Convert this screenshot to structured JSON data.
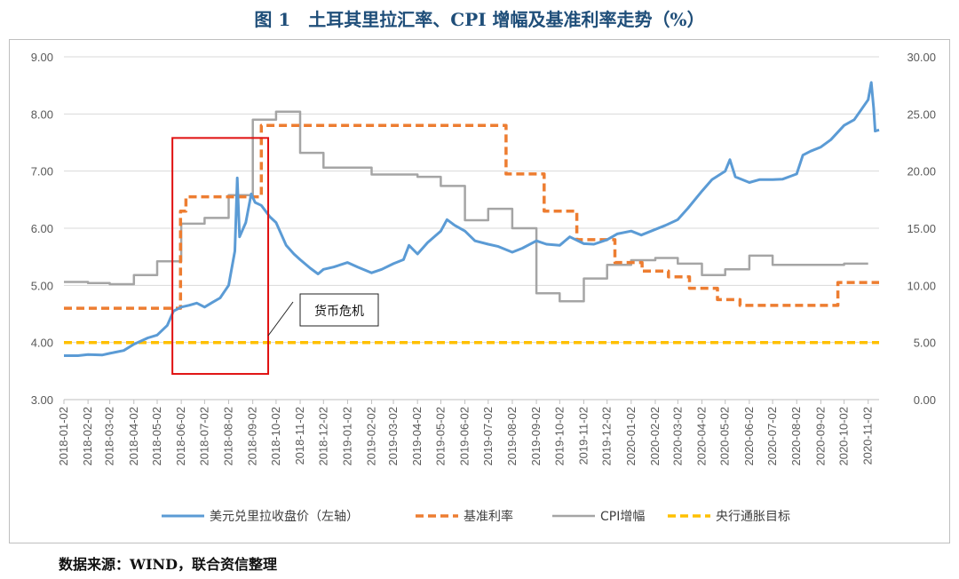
{
  "title": "图 1　土耳其里拉汇率、CPI 增幅及基准利率走势（%）",
  "source": "数据来源：WIND，联合资信整理",
  "annotation": "货币危机",
  "colors": {
    "fx": "#5b9bd5",
    "rate": "#ed7d31",
    "cpi": "#a5a5a5",
    "target": "#ffc000",
    "highlight": "#e01010"
  },
  "chart_data": {
    "type": "line",
    "x_ticks": [
      "2018-01-02",
      "2018-02-02",
      "2018-03-02",
      "2018-04-02",
      "2018-05-02",
      "2018-06-02",
      "2018-07-02",
      "2018-08-02",
      "2018-09-02",
      "2018-10-02",
      "2018-11-02",
      "2018-12-02",
      "2019-01-02",
      "2019-02-02",
      "2019-03-02",
      "2019-04-02",
      "2019-05-02",
      "2019-06-02",
      "2019-07-02",
      "2019-08-02",
      "2019-09-02",
      "2019-10-02",
      "2019-11-02",
      "2019-12-02",
      "2020-01-02",
      "2020-02-02",
      "2020-03-02",
      "2020-04-02",
      "2020-05-02",
      "2020-06-02",
      "2020-07-02",
      "2020-08-02",
      "2020-09-02",
      "2020-10-02",
      "2020-11-02"
    ],
    "y_left": {
      "ticks": [
        "3.00",
        "4.00",
        "5.00",
        "6.00",
        "7.00",
        "8.00",
        "9.00"
      ],
      "range": [
        3,
        9
      ]
    },
    "y_right": {
      "ticks": [
        "0.00",
        "5.00",
        "10.00",
        "15.00",
        "20.00",
        "25.00",
        "30.00"
      ],
      "range": [
        0,
        30
      ]
    },
    "highlight_range": [
      "2018-06-02",
      "2018-09-15"
    ],
    "highlight_ylim": [
      3.45,
      7.58
    ],
    "series": [
      {
        "name": "美元兑里拉收盘价（左轴）",
        "axis": "left",
        "style": "solid",
        "points": [
          [
            "2018-01-02",
            3.77
          ],
          [
            "2018-01-20",
            3.77
          ],
          [
            "2018-02-02",
            3.79
          ],
          [
            "2018-02-20",
            3.78
          ],
          [
            "2018-03-02",
            3.81
          ],
          [
            "2018-03-20",
            3.86
          ],
          [
            "2018-04-02",
            3.97
          ],
          [
            "2018-04-20",
            4.08
          ],
          [
            "2018-05-02",
            4.13
          ],
          [
            "2018-05-15",
            4.3
          ],
          [
            "2018-05-23",
            4.55
          ],
          [
            "2018-06-02",
            4.62
          ],
          [
            "2018-06-12",
            4.65
          ],
          [
            "2018-06-22",
            4.69
          ],
          [
            "2018-07-02",
            4.62
          ],
          [
            "2018-07-12",
            4.7
          ],
          [
            "2018-07-22",
            4.78
          ],
          [
            "2018-08-02",
            5.0
          ],
          [
            "2018-08-10",
            5.6
          ],
          [
            "2018-08-13",
            6.88
          ],
          [
            "2018-08-16",
            5.85
          ],
          [
            "2018-08-24",
            6.1
          ],
          [
            "2018-08-31",
            6.6
          ],
          [
            "2018-09-05",
            6.45
          ],
          [
            "2018-09-13",
            6.4
          ],
          [
            "2018-09-24",
            6.2
          ],
          [
            "2018-10-02",
            6.1
          ],
          [
            "2018-10-15",
            5.7
          ],
          [
            "2018-10-25",
            5.55
          ],
          [
            "2018-11-02",
            5.45
          ],
          [
            "2018-11-15",
            5.3
          ],
          [
            "2018-11-25",
            5.2
          ],
          [
            "2018-12-02",
            5.28
          ],
          [
            "2018-12-15",
            5.32
          ],
          [
            "2019-01-02",
            5.4
          ],
          [
            "2019-01-15",
            5.32
          ],
          [
            "2019-02-02",
            5.22
          ],
          [
            "2019-02-15",
            5.28
          ],
          [
            "2019-03-02",
            5.38
          ],
          [
            "2019-03-15",
            5.45
          ],
          [
            "2019-03-22",
            5.7
          ],
          [
            "2019-04-02",
            5.55
          ],
          [
            "2019-04-15",
            5.75
          ],
          [
            "2019-05-02",
            5.95
          ],
          [
            "2019-05-10",
            6.15
          ],
          [
            "2019-05-20",
            6.05
          ],
          [
            "2019-06-02",
            5.95
          ],
          [
            "2019-06-15",
            5.78
          ],
          [
            "2019-07-02",
            5.72
          ],
          [
            "2019-07-15",
            5.68
          ],
          [
            "2019-08-02",
            5.58
          ],
          [
            "2019-08-15",
            5.65
          ],
          [
            "2019-09-02",
            5.78
          ],
          [
            "2019-09-15",
            5.72
          ],
          [
            "2019-10-02",
            5.7
          ],
          [
            "2019-10-15",
            5.85
          ],
          [
            "2019-11-02",
            5.73
          ],
          [
            "2019-11-15",
            5.72
          ],
          [
            "2019-12-02",
            5.8
          ],
          [
            "2019-12-15",
            5.9
          ],
          [
            "2020-01-02",
            5.95
          ],
          [
            "2020-01-15",
            5.88
          ],
          [
            "2020-02-02",
            5.98
          ],
          [
            "2020-02-15",
            6.05
          ],
          [
            "2020-03-02",
            6.15
          ],
          [
            "2020-03-15",
            6.35
          ],
          [
            "2020-04-02",
            6.65
          ],
          [
            "2020-04-15",
            6.85
          ],
          [
            "2020-05-02",
            7.0
          ],
          [
            "2020-05-08",
            7.2
          ],
          [
            "2020-05-15",
            6.9
          ],
          [
            "2020-06-02",
            6.8
          ],
          [
            "2020-06-15",
            6.85
          ],
          [
            "2020-07-02",
            6.85
          ],
          [
            "2020-07-15",
            6.86
          ],
          [
            "2020-08-02",
            6.95
          ],
          [
            "2020-08-10",
            7.28
          ],
          [
            "2020-08-20",
            7.35
          ],
          [
            "2020-09-02",
            7.42
          ],
          [
            "2020-09-15",
            7.55
          ],
          [
            "2020-10-02",
            7.8
          ],
          [
            "2020-10-15",
            7.9
          ],
          [
            "2020-11-02",
            8.25
          ],
          [
            "2020-11-06",
            8.55
          ],
          [
            "2020-11-09",
            8.1
          ],
          [
            "2020-11-11",
            7.7
          ],
          [
            "2020-11-16",
            7.72
          ]
        ]
      },
      {
        "name": "基准利率",
        "axis": "right",
        "style": "dash",
        "points": [
          [
            "2018-01-02",
            8.0
          ],
          [
            "2018-06-01",
            8.0
          ],
          [
            "2018-06-01",
            16.5
          ],
          [
            "2018-06-08",
            16.5
          ],
          [
            "2018-06-08",
            17.75
          ],
          [
            "2018-09-13",
            17.75
          ],
          [
            "2018-09-13",
            24.0
          ],
          [
            "2019-07-25",
            24.0
          ],
          [
            "2019-07-25",
            19.75
          ],
          [
            "2019-09-12",
            19.75
          ],
          [
            "2019-09-12",
            16.5
          ],
          [
            "2019-10-24",
            16.5
          ],
          [
            "2019-10-24",
            14.0
          ],
          [
            "2019-12-12",
            14.0
          ],
          [
            "2019-12-12",
            12.0
          ],
          [
            "2020-01-16",
            12.0
          ],
          [
            "2020-01-16",
            11.25
          ],
          [
            "2020-02-19",
            11.25
          ],
          [
            "2020-02-19",
            10.75
          ],
          [
            "2020-03-17",
            10.75
          ],
          [
            "2020-03-17",
            9.75
          ],
          [
            "2020-04-22",
            9.75
          ],
          [
            "2020-04-22",
            8.75
          ],
          [
            "2020-05-21",
            8.75
          ],
          [
            "2020-05-21",
            8.25
          ],
          [
            "2020-09-24",
            8.25
          ],
          [
            "2020-09-24",
            10.25
          ],
          [
            "2020-11-16",
            10.25
          ]
        ]
      },
      {
        "name": "CPI增幅",
        "axis": "right",
        "style": "solid",
        "points": [
          [
            "2018-01-02",
            10.3
          ],
          [
            "2018-02-02",
            10.3
          ],
          [
            "2018-02-02",
            10.2
          ],
          [
            "2018-03-02",
            10.2
          ],
          [
            "2018-03-02",
            10.1
          ],
          [
            "2018-04-02",
            10.1
          ],
          [
            "2018-04-02",
            10.9
          ],
          [
            "2018-05-02",
            10.9
          ],
          [
            "2018-05-02",
            12.1
          ],
          [
            "2018-06-02",
            12.1
          ],
          [
            "2018-06-02",
            15.4
          ],
          [
            "2018-07-02",
            15.4
          ],
          [
            "2018-07-02",
            15.9
          ],
          [
            "2018-08-02",
            15.9
          ],
          [
            "2018-08-02",
            17.9
          ],
          [
            "2018-09-02",
            17.9
          ],
          [
            "2018-09-02",
            24.5
          ],
          [
            "2018-10-02",
            24.5
          ],
          [
            "2018-10-02",
            25.2
          ],
          [
            "2018-11-02",
            25.2
          ],
          [
            "2018-11-02",
            21.6
          ],
          [
            "2018-12-02",
            21.6
          ],
          [
            "2018-12-02",
            20.3
          ],
          [
            "2019-01-02",
            20.3
          ],
          [
            "2019-01-02",
            20.3
          ],
          [
            "2019-02-02",
            20.3
          ],
          [
            "2019-02-02",
            19.7
          ],
          [
            "2019-03-02",
            19.7
          ],
          [
            "2019-03-02",
            19.7
          ],
          [
            "2019-04-02",
            19.7
          ],
          [
            "2019-04-02",
            19.5
          ],
          [
            "2019-05-02",
            19.5
          ],
          [
            "2019-05-02",
            18.7
          ],
          [
            "2019-06-02",
            18.7
          ],
          [
            "2019-06-02",
            15.7
          ],
          [
            "2019-07-02",
            15.7
          ],
          [
            "2019-07-02",
            16.7
          ],
          [
            "2019-08-02",
            16.7
          ],
          [
            "2019-08-02",
            15.0
          ],
          [
            "2019-09-02",
            15.0
          ],
          [
            "2019-09-02",
            9.3
          ],
          [
            "2019-10-02",
            9.3
          ],
          [
            "2019-10-02",
            8.6
          ],
          [
            "2019-11-02",
            8.6
          ],
          [
            "2019-11-02",
            10.6
          ],
          [
            "2019-12-02",
            10.6
          ],
          [
            "2019-12-02",
            11.8
          ],
          [
            "2020-01-02",
            11.8
          ],
          [
            "2020-01-02",
            12.2
          ],
          [
            "2020-02-02",
            12.2
          ],
          [
            "2020-02-02",
            12.4
          ],
          [
            "2020-03-02",
            12.4
          ],
          [
            "2020-03-02",
            11.9
          ],
          [
            "2020-04-02",
            11.9
          ],
          [
            "2020-04-02",
            10.9
          ],
          [
            "2020-05-02",
            10.9
          ],
          [
            "2020-05-02",
            11.4
          ],
          [
            "2020-06-02",
            11.4
          ],
          [
            "2020-06-02",
            12.6
          ],
          [
            "2020-07-02",
            12.6
          ],
          [
            "2020-07-02",
            11.8
          ],
          [
            "2020-08-02",
            11.8
          ],
          [
            "2020-08-02",
            11.8
          ],
          [
            "2020-09-02",
            11.8
          ],
          [
            "2020-09-02",
            11.8
          ],
          [
            "2020-10-02",
            11.8
          ],
          [
            "2020-10-02",
            11.9
          ],
          [
            "2020-11-02",
            11.9
          ]
        ]
      },
      {
        "name": "央行通胀目标",
        "axis": "right",
        "style": "dash",
        "points": [
          [
            "2018-01-02",
            5.0
          ],
          [
            "2020-11-16",
            5.0
          ]
        ]
      }
    ]
  }
}
